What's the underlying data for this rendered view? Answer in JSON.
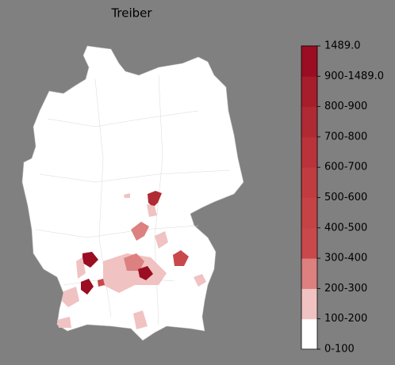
{
  "title": "Treiber",
  "colorbar": {
    "ticks": [
      "0-100",
      "100-200",
      "200-300",
      "300-400",
      "400-500",
      "500-600",
      "600-700",
      "700-800",
      "800-900",
      "900-1489.0",
      "1489.0"
    ],
    "colors": [
      "#ffffff",
      "#f0c2c2",
      "#dc8080",
      "#c9484b",
      "#c54245",
      "#c13c40",
      "#ba333a",
      "#b02a33",
      "#a61d2c",
      "#9b0d22"
    ]
  }
}
